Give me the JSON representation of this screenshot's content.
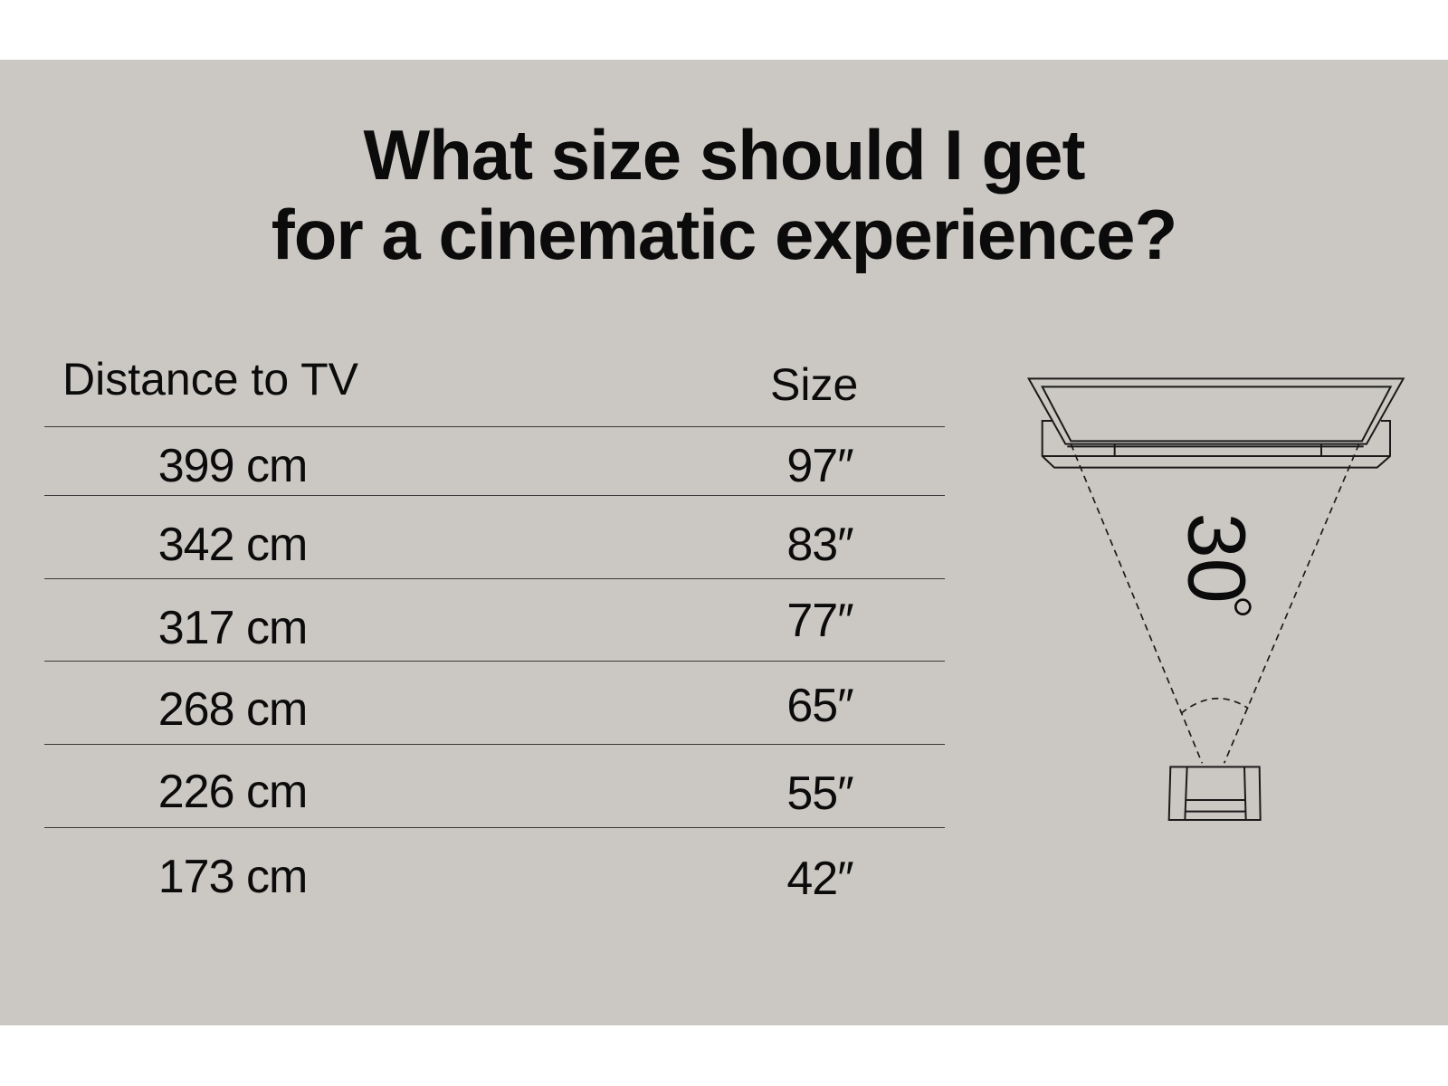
{
  "title": {
    "line1": "What size should I get",
    "line2": "for a cinematic experience?"
  },
  "table": {
    "headers": {
      "distance": "Distance to TV",
      "size": "Size"
    },
    "rows": [
      {
        "distance": "399 cm",
        "size": "97″"
      },
      {
        "distance": "342 cm",
        "size": "83″"
      },
      {
        "distance": "317 cm",
        "size": "77″"
      },
      {
        "distance": "268 cm",
        "size": "65″"
      },
      {
        "distance": "226 cm",
        "size": "55″"
      },
      {
        "distance": "173 cm",
        "size": "42″"
      }
    ]
  },
  "diagram": {
    "angle_label": "30",
    "icons": [
      "tv-icon",
      "soundbar-icon",
      "armchair-icon",
      "viewing-angle-icon"
    ]
  },
  "colors": {
    "background": "#cbc8c3",
    "text": "#0b0b0b",
    "page": "#ffffff"
  }
}
